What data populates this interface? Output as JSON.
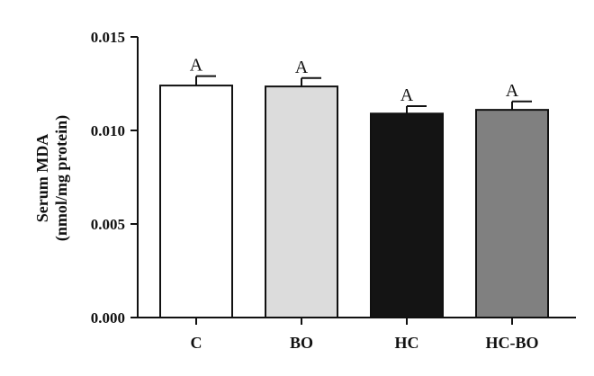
{
  "chart_data": {
    "type": "bar",
    "categories": [
      "C",
      "BO",
      "HC",
      "HC-BO"
    ],
    "values": [
      0.0124,
      0.01235,
      0.0109,
      0.0111
    ],
    "errors": [
      0.0005,
      0.00045,
      0.0004,
      0.00045
    ],
    "significance": [
      "A",
      "A",
      "A",
      "A"
    ],
    "colors": [
      "#ffffff",
      "#dcdcdc",
      "#141414",
      "#808080"
    ],
    "ylabel_line1": "Serum MDA",
    "ylabel_line2": "(nmol/mg protein)",
    "ylim": [
      0,
      0.015
    ],
    "yticks": [
      0.0,
      0.005,
      0.01,
      0.015
    ],
    "ytick_labels": [
      "0.000",
      "0.005",
      "0.010",
      "0.015"
    ],
    "grid": false
  }
}
